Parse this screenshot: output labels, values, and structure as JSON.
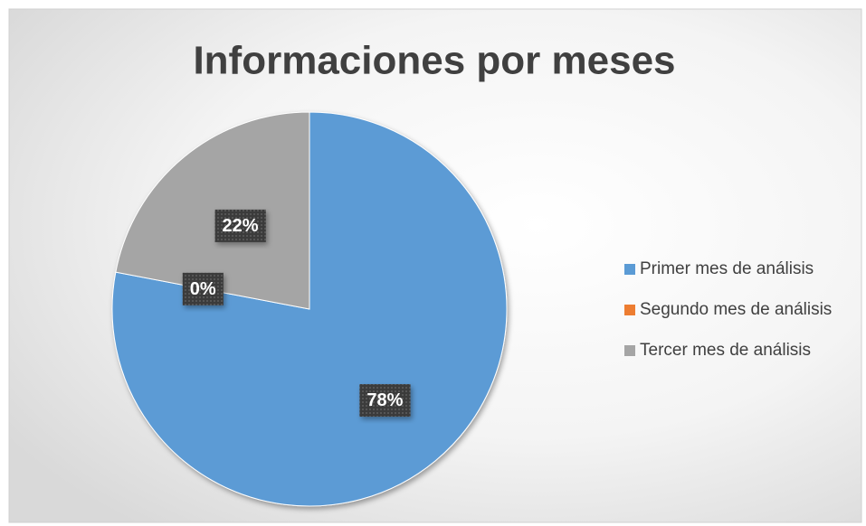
{
  "chart_data": {
    "type": "pie",
    "title": "Informaciones por meses",
    "categories": [
      "Primer mes de análisis",
      "Segundo mes de análisis",
      "Tercer mes de análisis"
    ],
    "values": [
      78,
      0,
      22
    ],
    "value_labels": [
      "78%",
      "0%",
      "22%"
    ],
    "colors": [
      "#5b9bd5",
      "#ed7d31",
      "#a5a5a5"
    ],
    "legend": "right"
  }
}
